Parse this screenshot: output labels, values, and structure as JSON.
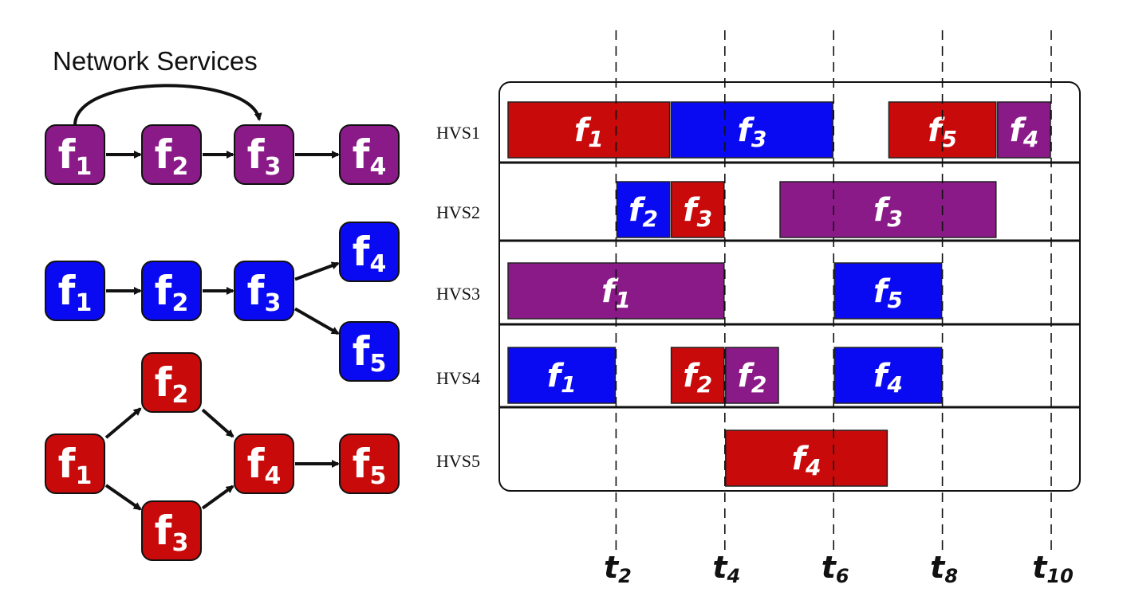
{
  "title": "Network Services",
  "colors": {
    "purple": "#8b1a89",
    "blue": "#0a0af2",
    "red": "#c80a0a",
    "black": "#111111"
  },
  "services": [
    {
      "color": "purple",
      "nodes": [
        {
          "id": "p1",
          "name": "f",
          "sub": "1"
        },
        {
          "id": "p2",
          "name": "f",
          "sub": "2"
        },
        {
          "id": "p3",
          "name": "f",
          "sub": "3"
        },
        {
          "id": "p4",
          "name": "f",
          "sub": "4"
        }
      ],
      "edges": [
        [
          "p1",
          "p2"
        ],
        [
          "p2",
          "p3"
        ],
        [
          "p3",
          "p4"
        ],
        [
          "p1",
          "p3"
        ]
      ]
    },
    {
      "color": "blue",
      "nodes": [
        {
          "id": "b1",
          "name": "f",
          "sub": "1"
        },
        {
          "id": "b2",
          "name": "f",
          "sub": "2"
        },
        {
          "id": "b3",
          "name": "f",
          "sub": "3"
        },
        {
          "id": "b4",
          "name": "f",
          "sub": "4"
        },
        {
          "id": "b5",
          "name": "f",
          "sub": "5"
        }
      ],
      "edges": [
        [
          "b1",
          "b2"
        ],
        [
          "b2",
          "b3"
        ],
        [
          "b3",
          "b4"
        ],
        [
          "b3",
          "b5"
        ]
      ]
    },
    {
      "color": "red",
      "nodes": [
        {
          "id": "r1",
          "name": "f",
          "sub": "1"
        },
        {
          "id": "r2",
          "name": "f",
          "sub": "2"
        },
        {
          "id": "r3",
          "name": "f",
          "sub": "3"
        },
        {
          "id": "r4",
          "name": "f",
          "sub": "4"
        },
        {
          "id": "r5",
          "name": "f",
          "sub": "5"
        }
      ],
      "edges": [
        [
          "r1",
          "r2"
        ],
        [
          "r1",
          "r3"
        ],
        [
          "r2",
          "r4"
        ],
        [
          "r3",
          "r4"
        ],
        [
          "r4",
          "r5"
        ]
      ]
    }
  ],
  "schedule": {
    "rows": [
      {
        "label": "HVS1",
        "tasks": [
          {
            "name": "f",
            "sub": "1",
            "color": "red",
            "start": 0,
            "end": 3
          },
          {
            "name": "f",
            "sub": "3",
            "color": "blue",
            "start": 3,
            "end": 6
          },
          {
            "name": "f",
            "sub": "5",
            "color": "red",
            "start": 7,
            "end": 9
          },
          {
            "name": "f",
            "sub": "4",
            "color": "purple",
            "start": 9,
            "end": 10
          }
        ]
      },
      {
        "label": "HVS2",
        "tasks": [
          {
            "name": "f",
            "sub": "2",
            "color": "blue",
            "start": 2,
            "end": 3
          },
          {
            "name": "f",
            "sub": "3",
            "color": "red",
            "start": 3,
            "end": 4
          },
          {
            "name": "f",
            "sub": "3",
            "color": "purple",
            "start": 5,
            "end": 9
          }
        ]
      },
      {
        "label": "HVS3",
        "tasks": [
          {
            "name": "f",
            "sub": "1",
            "color": "purple",
            "start": 0,
            "end": 4
          },
          {
            "name": "f",
            "sub": "5",
            "color": "blue",
            "start": 6,
            "end": 8
          }
        ]
      },
      {
        "label": "HVS4",
        "tasks": [
          {
            "name": "f",
            "sub": "1",
            "color": "blue",
            "start": 0,
            "end": 2
          },
          {
            "name": "f",
            "sub": "2",
            "color": "red",
            "start": 3,
            "end": 4
          },
          {
            "name": "f",
            "sub": "2",
            "color": "purple",
            "start": 4,
            "end": 5
          },
          {
            "name": "f",
            "sub": "4",
            "color": "blue",
            "start": 6,
            "end": 8
          }
        ]
      },
      {
        "label": "HVS5",
        "tasks": [
          {
            "name": "f",
            "sub": "4",
            "color": "red",
            "start": 4,
            "end": 7
          }
        ]
      }
    ],
    "ticks": [
      {
        "name": "t",
        "sub": "2",
        "at": 2
      },
      {
        "name": "t",
        "sub": "4",
        "at": 4
      },
      {
        "name": "t",
        "sub": "6",
        "at": 6
      },
      {
        "name": "t",
        "sub": "8",
        "at": 8
      },
      {
        "name": "t",
        "sub": "10",
        "at": 10
      }
    ]
  }
}
